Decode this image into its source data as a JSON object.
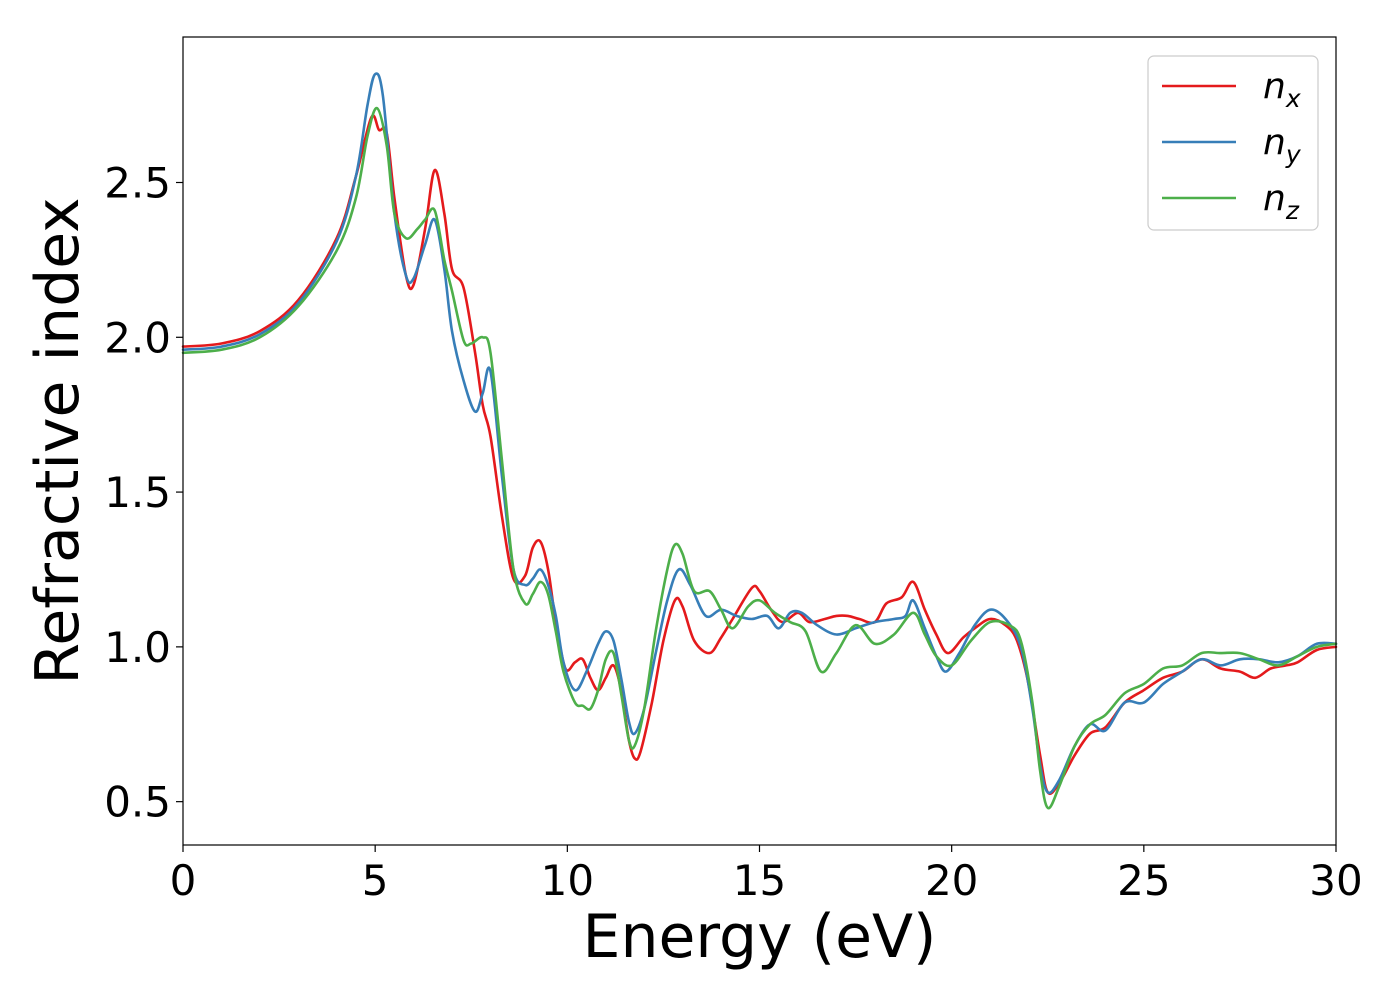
{
  "chart_data": {
    "type": "line",
    "xlabel": "Energy (eV)",
    "ylabel": "Refractive index",
    "xlim": [
      0,
      30
    ],
    "ylim": [
      0.36,
      2.97
    ],
    "xticks": [
      0,
      5,
      10,
      15,
      20,
      25,
      30
    ],
    "xtick_labels": [
      "0",
      "5",
      "10",
      "15",
      "20",
      "25",
      "30"
    ],
    "yticks": [
      0.5,
      1.0,
      1.5,
      2.0,
      2.5
    ],
    "ytick_labels": [
      "0.5",
      "1.0",
      "1.5",
      "2.0",
      "2.5"
    ],
    "grid": false,
    "legend_position": "top-right",
    "series": [
      {
        "name": "n_x",
        "label_main": "n",
        "label_sub": "x",
        "color": "#e41a1c",
        "points": [
          [
            0,
            1.97
          ],
          [
            1,
            1.98
          ],
          [
            2,
            2.02
          ],
          [
            3,
            2.12
          ],
          [
            4,
            2.32
          ],
          [
            4.5,
            2.52
          ],
          [
            4.9,
            2.71
          ],
          [
            5.1,
            2.67
          ],
          [
            5.3,
            2.66
          ],
          [
            5.5,
            2.45
          ],
          [
            5.8,
            2.2
          ],
          [
            6.0,
            2.17
          ],
          [
            6.3,
            2.35
          ],
          [
            6.55,
            2.54
          ],
          [
            6.8,
            2.4
          ],
          [
            7.0,
            2.22
          ],
          [
            7.3,
            2.16
          ],
          [
            7.6,
            1.95
          ],
          [
            7.8,
            1.78
          ],
          [
            8.0,
            1.68
          ],
          [
            8.3,
            1.42
          ],
          [
            8.6,
            1.22
          ],
          [
            8.9,
            1.23
          ],
          [
            9.1,
            1.32
          ],
          [
            9.3,
            1.34
          ],
          [
            9.5,
            1.25
          ],
          [
            9.7,
            1.08
          ],
          [
            9.95,
            0.93
          ],
          [
            10.2,
            0.95
          ],
          [
            10.4,
            0.96
          ],
          [
            10.6,
            0.9
          ],
          [
            10.8,
            0.86
          ],
          [
            11.0,
            0.9
          ],
          [
            11.2,
            0.94
          ],
          [
            11.4,
            0.86
          ],
          [
            11.6,
            0.7
          ],
          [
            11.75,
            0.64
          ],
          [
            11.9,
            0.66
          ],
          [
            12.2,
            0.82
          ],
          [
            12.5,
            1.02
          ],
          [
            12.8,
            1.15
          ],
          [
            13.0,
            1.13
          ],
          [
            13.3,
            1.02
          ],
          [
            13.7,
            0.98
          ],
          [
            14.0,
            1.03
          ],
          [
            14.3,
            1.09
          ],
          [
            14.8,
            1.19
          ],
          [
            15.0,
            1.18
          ],
          [
            15.3,
            1.12
          ],
          [
            15.6,
            1.08
          ],
          [
            16.0,
            1.11
          ],
          [
            16.3,
            1.08
          ],
          [
            16.7,
            1.09
          ],
          [
            17.0,
            1.1
          ],
          [
            17.3,
            1.1
          ],
          [
            17.6,
            1.09
          ],
          [
            18.0,
            1.08
          ],
          [
            18.3,
            1.14
          ],
          [
            18.7,
            1.16
          ],
          [
            19.0,
            1.21
          ],
          [
            19.3,
            1.12
          ],
          [
            19.6,
            1.04
          ],
          [
            19.9,
            0.98
          ],
          [
            20.3,
            1.03
          ],
          [
            20.6,
            1.06
          ],
          [
            21.0,
            1.09
          ],
          [
            21.4,
            1.07
          ],
          [
            21.7,
            1.02
          ],
          [
            22.0,
            0.88
          ],
          [
            22.3,
            0.65
          ],
          [
            22.5,
            0.53
          ],
          [
            22.8,
            0.56
          ],
          [
            23.2,
            0.65
          ],
          [
            23.6,
            0.72
          ],
          [
            24.0,
            0.74
          ],
          [
            24.5,
            0.82
          ],
          [
            25.0,
            0.86
          ],
          [
            25.5,
            0.9
          ],
          [
            26.0,
            0.92
          ],
          [
            26.5,
            0.96
          ],
          [
            27.0,
            0.93
          ],
          [
            27.5,
            0.92
          ],
          [
            27.9,
            0.9
          ],
          [
            28.3,
            0.93
          ],
          [
            28.7,
            0.94
          ],
          [
            29.0,
            0.95
          ],
          [
            29.5,
            0.99
          ],
          [
            30.0,
            1.0
          ]
        ]
      },
      {
        "name": "n_y",
        "label_main": "n",
        "label_sub": "y",
        "color": "#377eb8",
        "points": [
          [
            0,
            1.96
          ],
          [
            1,
            1.97
          ],
          [
            2,
            2.01
          ],
          [
            3,
            2.11
          ],
          [
            4,
            2.31
          ],
          [
            4.5,
            2.52
          ],
          [
            4.8,
            2.75
          ],
          [
            5.0,
            2.85
          ],
          [
            5.2,
            2.78
          ],
          [
            5.5,
            2.4
          ],
          [
            5.8,
            2.2
          ],
          [
            6.0,
            2.19
          ],
          [
            6.3,
            2.3
          ],
          [
            6.55,
            2.38
          ],
          [
            6.8,
            2.22
          ],
          [
            7.0,
            2.02
          ],
          [
            7.3,
            1.86
          ],
          [
            7.6,
            1.76
          ],
          [
            7.8,
            1.82
          ],
          [
            8.0,
            1.89
          ],
          [
            8.3,
            1.55
          ],
          [
            8.6,
            1.25
          ],
          [
            8.9,
            1.2
          ],
          [
            9.1,
            1.22
          ],
          [
            9.3,
            1.25
          ],
          [
            9.5,
            1.2
          ],
          [
            9.7,
            1.1
          ],
          [
            9.9,
            0.95
          ],
          [
            10.2,
            0.86
          ],
          [
            10.5,
            0.92
          ],
          [
            10.8,
            1.01
          ],
          [
            11.0,
            1.05
          ],
          [
            11.2,
            1.02
          ],
          [
            11.4,
            0.9
          ],
          [
            11.6,
            0.76
          ],
          [
            11.75,
            0.72
          ],
          [
            12.0,
            0.8
          ],
          [
            12.3,
            0.98
          ],
          [
            12.6,
            1.15
          ],
          [
            12.9,
            1.25
          ],
          [
            13.2,
            1.2
          ],
          [
            13.6,
            1.1
          ],
          [
            14.0,
            1.12
          ],
          [
            14.4,
            1.1
          ],
          [
            14.8,
            1.09
          ],
          [
            15.2,
            1.1
          ],
          [
            15.5,
            1.06
          ],
          [
            15.8,
            1.11
          ],
          [
            16.1,
            1.11
          ],
          [
            16.5,
            1.07
          ],
          [
            17.0,
            1.04
          ],
          [
            17.5,
            1.06
          ],
          [
            18.0,
            1.08
          ],
          [
            18.5,
            1.09
          ],
          [
            18.8,
            1.1
          ],
          [
            19.0,
            1.15
          ],
          [
            19.3,
            1.06
          ],
          [
            19.6,
            0.97
          ],
          [
            19.85,
            0.92
          ],
          [
            20.2,
            0.98
          ],
          [
            20.6,
            1.07
          ],
          [
            21.0,
            1.12
          ],
          [
            21.4,
            1.09
          ],
          [
            21.8,
            1.0
          ],
          [
            22.1,
            0.8
          ],
          [
            22.3,
            0.62
          ],
          [
            22.5,
            0.53
          ],
          [
            22.8,
            0.57
          ],
          [
            23.2,
            0.68
          ],
          [
            23.6,
            0.75
          ],
          [
            24.0,
            0.73
          ],
          [
            24.5,
            0.82
          ],
          [
            25.0,
            0.82
          ],
          [
            25.5,
            0.88
          ],
          [
            26.0,
            0.92
          ],
          [
            26.5,
            0.96
          ],
          [
            27.0,
            0.94
          ],
          [
            27.5,
            0.96
          ],
          [
            28.0,
            0.96
          ],
          [
            28.5,
            0.95
          ],
          [
            29.0,
            0.97
          ],
          [
            29.5,
            1.01
          ],
          [
            30.0,
            1.01
          ]
        ]
      },
      {
        "name": "n_z",
        "label_main": "n",
        "label_sub": "z",
        "color": "#4daf4a",
        "points": [
          [
            0,
            1.95
          ],
          [
            1,
            1.96
          ],
          [
            2,
            2.0
          ],
          [
            3,
            2.1
          ],
          [
            4,
            2.28
          ],
          [
            4.5,
            2.45
          ],
          [
            4.8,
            2.65
          ],
          [
            5.05,
            2.74
          ],
          [
            5.3,
            2.62
          ],
          [
            5.5,
            2.4
          ],
          [
            5.8,
            2.32
          ],
          [
            6.1,
            2.35
          ],
          [
            6.3,
            2.38
          ],
          [
            6.55,
            2.41
          ],
          [
            6.8,
            2.25
          ],
          [
            7.0,
            2.15
          ],
          [
            7.3,
            1.99
          ],
          [
            7.5,
            1.98
          ],
          [
            7.8,
            2.0
          ],
          [
            8.0,
            1.95
          ],
          [
            8.3,
            1.6
          ],
          [
            8.6,
            1.25
          ],
          [
            8.9,
            1.14
          ],
          [
            9.1,
            1.17
          ],
          [
            9.3,
            1.21
          ],
          [
            9.5,
            1.17
          ],
          [
            9.7,
            1.05
          ],
          [
            9.9,
            0.92
          ],
          [
            10.2,
            0.82
          ],
          [
            10.4,
            0.81
          ],
          [
            10.6,
            0.8
          ],
          [
            10.8,
            0.86
          ],
          [
            11.0,
            0.96
          ],
          [
            11.2,
            0.98
          ],
          [
            11.4,
            0.85
          ],
          [
            11.6,
            0.7
          ],
          [
            11.75,
            0.68
          ],
          [
            12.0,
            0.8
          ],
          [
            12.3,
            1.05
          ],
          [
            12.6,
            1.25
          ],
          [
            12.8,
            1.33
          ],
          [
            13.0,
            1.3
          ],
          [
            13.3,
            1.18
          ],
          [
            13.7,
            1.18
          ],
          [
            14.0,
            1.12
          ],
          [
            14.3,
            1.06
          ],
          [
            14.7,
            1.13
          ],
          [
            15.0,
            1.15
          ],
          [
            15.4,
            1.11
          ],
          [
            15.8,
            1.08
          ],
          [
            16.2,
            1.05
          ],
          [
            16.6,
            0.92
          ],
          [
            17.0,
            0.98
          ],
          [
            17.5,
            1.07
          ],
          [
            18.0,
            1.01
          ],
          [
            18.5,
            1.04
          ],
          [
            19.0,
            1.11
          ],
          [
            19.3,
            1.04
          ],
          [
            19.6,
            0.97
          ],
          [
            20.0,
            0.94
          ],
          [
            20.5,
            1.02
          ],
          [
            21.0,
            1.08
          ],
          [
            21.5,
            1.07
          ],
          [
            21.8,
            1.02
          ],
          [
            22.1,
            0.82
          ],
          [
            22.3,
            0.6
          ],
          [
            22.5,
            0.48
          ],
          [
            22.8,
            0.55
          ],
          [
            23.2,
            0.68
          ],
          [
            23.6,
            0.75
          ],
          [
            24.0,
            0.78
          ],
          [
            24.5,
            0.85
          ],
          [
            25.0,
            0.88
          ],
          [
            25.5,
            0.93
          ],
          [
            26.0,
            0.94
          ],
          [
            26.5,
            0.98
          ],
          [
            27.0,
            0.98
          ],
          [
            27.5,
            0.98
          ],
          [
            28.0,
            0.96
          ],
          [
            28.5,
            0.94
          ],
          [
            29.0,
            0.97
          ],
          [
            29.5,
            1.0
          ],
          [
            30.0,
            1.01
          ]
        ]
      }
    ]
  }
}
